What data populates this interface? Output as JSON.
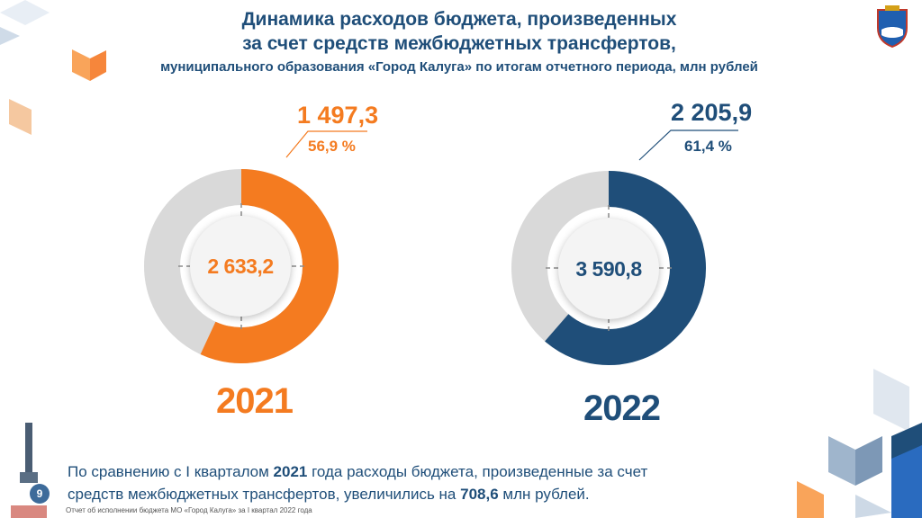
{
  "title": {
    "line1": "Динамика расходов бюджета, произведенных",
    "line2": "за счет средств межбюджетных трансфертов,",
    "line3": "муниципального образования «Город Калуга» по итогам отчетного периода, млн рублей"
  },
  "chart_data": {
    "type": "pie",
    "charts": [
      {
        "year": "2021",
        "total_label": "2 633,2",
        "part_label": "1 497,3",
        "share_label": "56,9 %",
        "total": 2633.2,
        "part": 1497.3,
        "share_percent": 56.9,
        "color": "#f47b20"
      },
      {
        "year": "2022",
        "total_label": "3 590,8",
        "part_label": "2 205,9",
        "share_label": "61,4 %",
        "total": 3590.8,
        "part": 2205.9,
        "share_percent": 61.4,
        "color": "#1f4e79"
      }
    ]
  },
  "footer": {
    "text_a": "По сравнению с I кварталом ",
    "year": "2021",
    "text_b": " года расходы бюджета, произведенные за счет средств межбюджетных трансфертов, увеличились на ",
    "amount": "708,6",
    "text_c": " млн рублей."
  },
  "page_number": "9",
  "bottom_note": "Отчет об исполнении бюджета МО «Город Калуга» за I квартал 2022 года",
  "colors": {
    "orange": "#f47b20",
    "blue": "#1f4e79",
    "ring_bg": "#d9d9d9"
  }
}
